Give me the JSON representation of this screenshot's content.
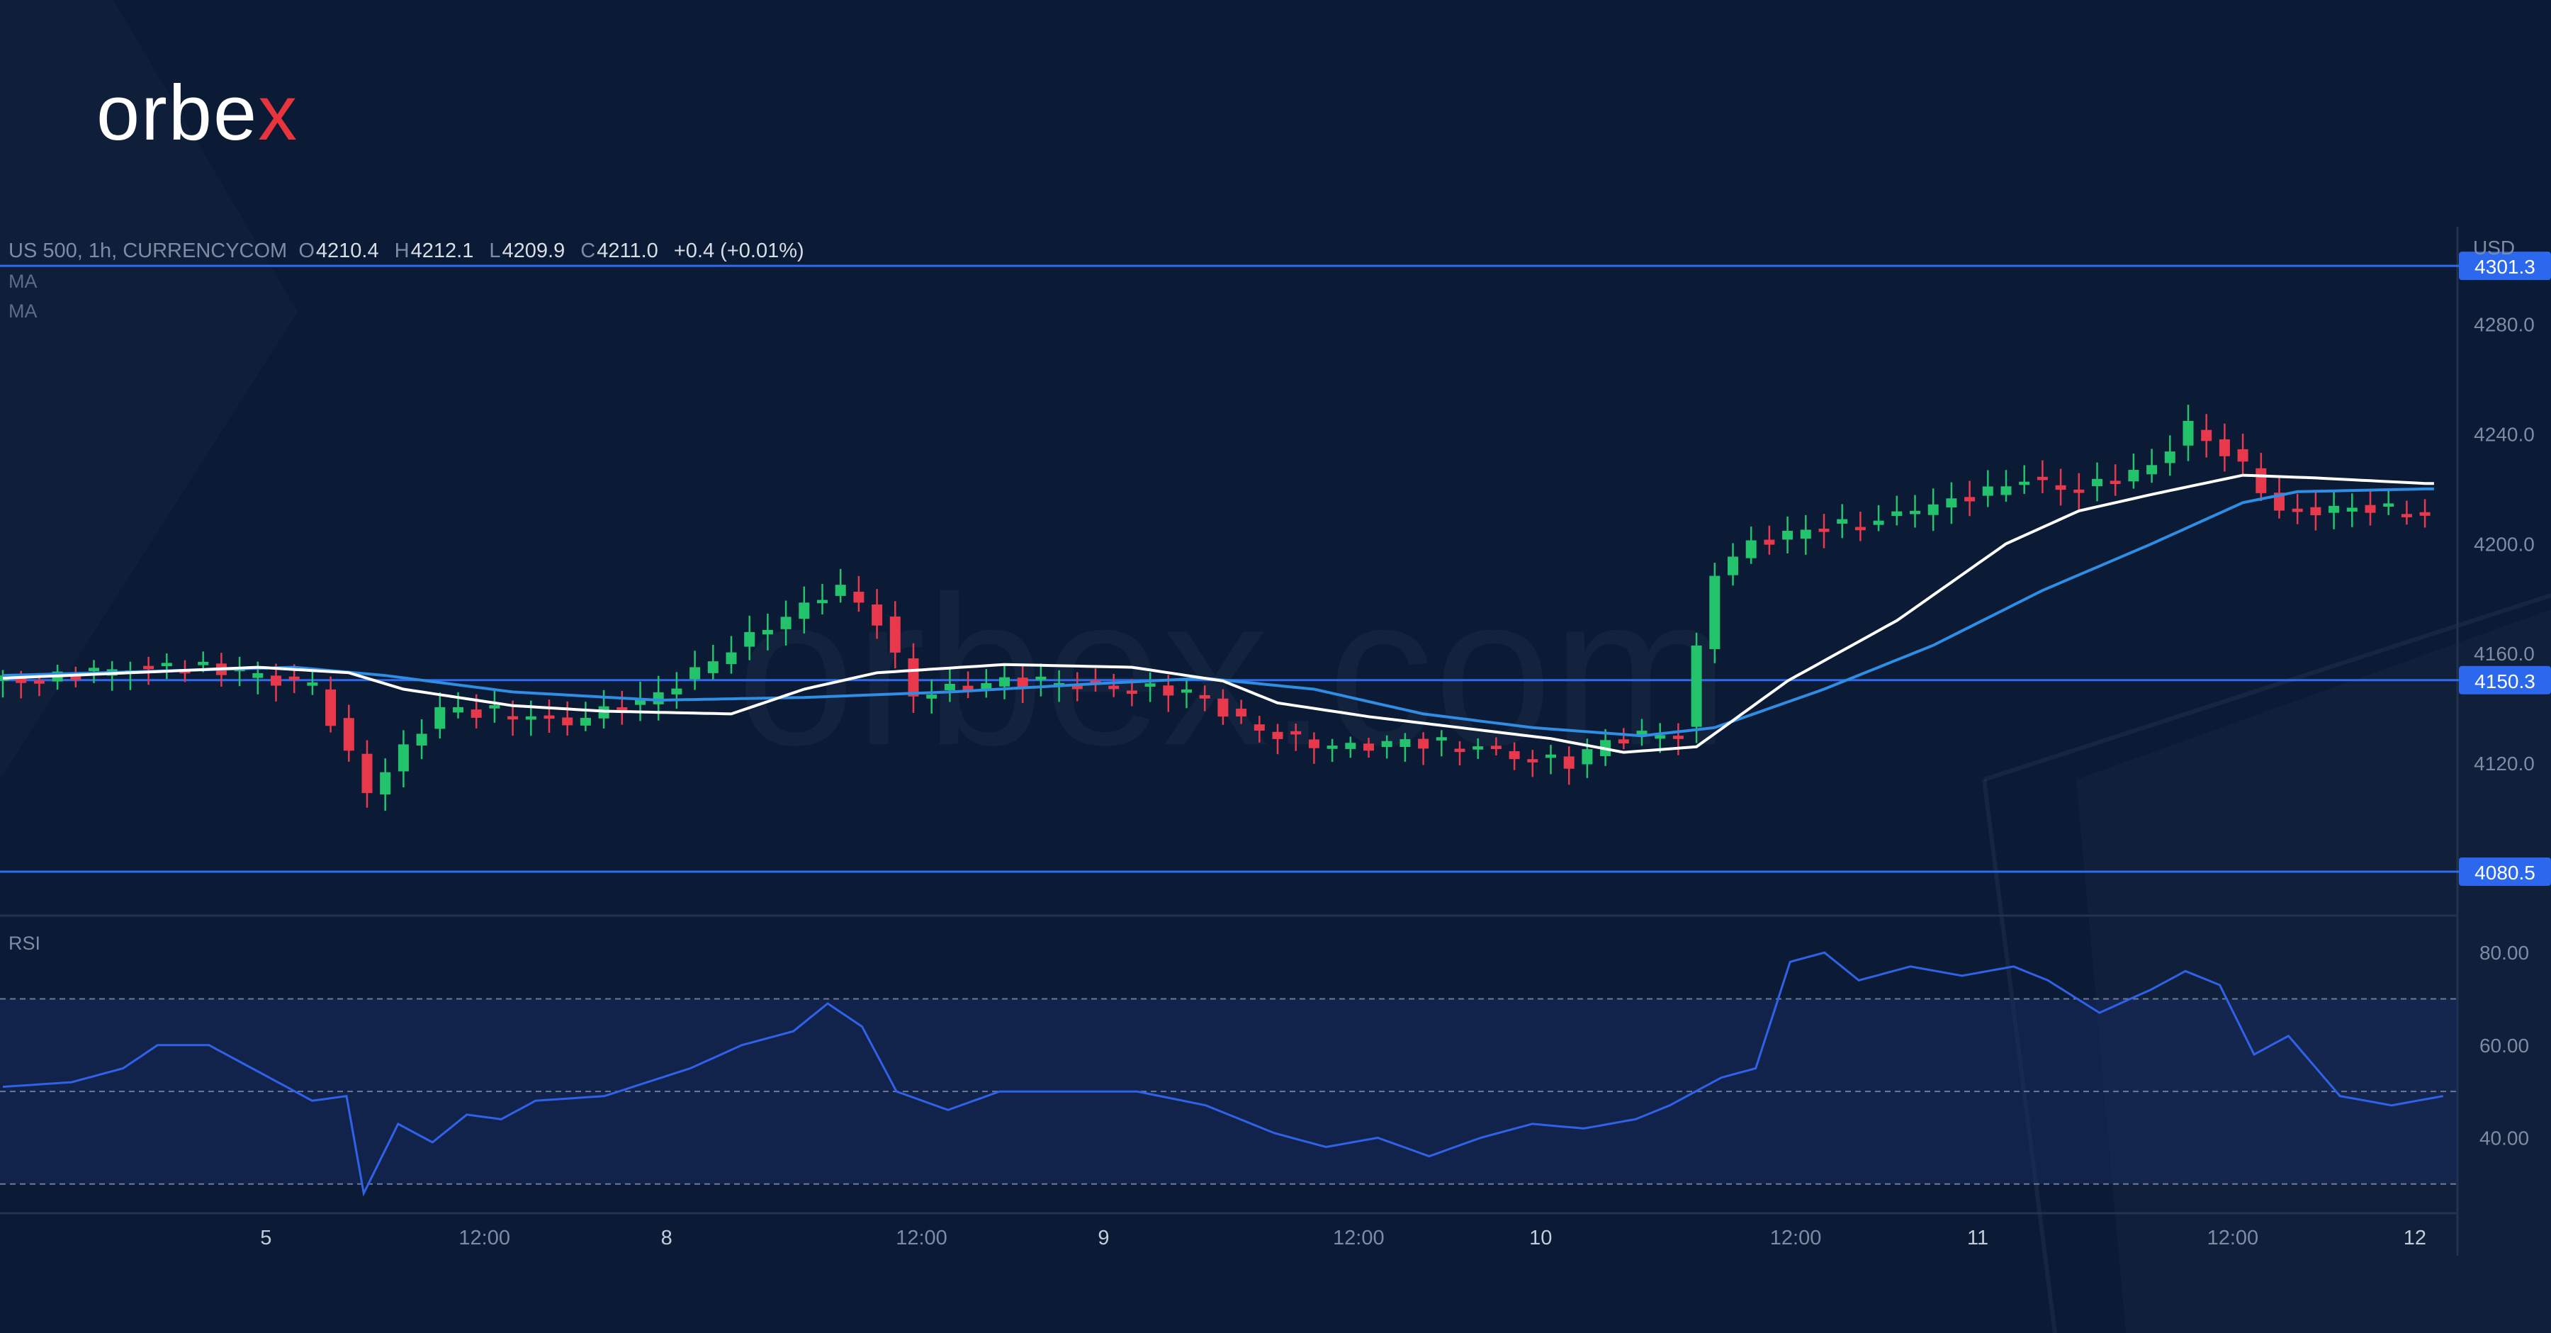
{
  "brand": {
    "name_main": "orbe",
    "name_accent": "x",
    "watermark": "orbex.com"
  },
  "legend": {
    "symbol": "US 500, 1h, CURRENCYCOM",
    "o_label": "O",
    "open": "4210.4",
    "h_label": "H",
    "high": "4212.1",
    "l_label": "L",
    "low": "4209.9",
    "c_label": "C",
    "close": "4211.0",
    "change": "+0.4 (+0.01%)",
    "ma1": "MA",
    "ma2": "MA"
  },
  "axis": {
    "currency": "USD"
  },
  "rsi_label": "RSI",
  "colors": {
    "background": "#0b1b36",
    "bull": "#22c36a",
    "bear": "#e8384c",
    "level_line": "#2f6bf0",
    "ma_fast": "#ffffff",
    "ma_slow": "#2f8de4",
    "rsi_line": "#2f62e8"
  },
  "chart_data": {
    "type": "candlestick",
    "symbol": "US 500",
    "timeframe": "1h",
    "y_ticks": [
      4120,
      4160,
      4200,
      4240,
      4280
    ],
    "y_tick_labels": [
      "4120.0",
      "4160.0",
      "4200.0",
      "4240.0",
      "4280.0"
    ],
    "ylim": [
      4065,
      4314
    ],
    "x_ticks": [
      {
        "label": "5",
        "bar": 9
      },
      {
        "label": "12:00",
        "bar": 21
      },
      {
        "label": "8",
        "bar": 31
      },
      {
        "label": "12:00",
        "bar": 45
      },
      {
        "label": "9",
        "bar": 55
      },
      {
        "label": "12:00",
        "bar": 69
      },
      {
        "label": "10",
        "bar": 79
      },
      {
        "label": "12:00",
        "bar": 93
      },
      {
        "label": "11",
        "bar": 103
      },
      {
        "label": "12:00",
        "bar": 117
      },
      {
        "label": "12",
        "bar": 127
      }
    ],
    "bars": 134,
    "levels": [
      {
        "value": 4301.3,
        "label": "4301.3"
      },
      {
        "value": 4150.3,
        "label": "4150.3"
      },
      {
        "value": 4080.5,
        "label": "4080.5"
      }
    ],
    "ohlc_anchors": [
      [
        0,
        4150
      ],
      [
        10,
        4156
      ],
      [
        17,
        4148
      ],
      [
        20,
        4110
      ],
      [
        24,
        4140
      ],
      [
        31,
        4135
      ],
      [
        36,
        4145
      ],
      [
        42,
        4170
      ],
      [
        46,
        4184
      ],
      [
        48,
        4172
      ],
      [
        50,
        4145
      ],
      [
        55,
        4150
      ],
      [
        61,
        4148
      ],
      [
        65,
        4146
      ],
      [
        69,
        4132
      ],
      [
        73,
        4125
      ],
      [
        77,
        4128
      ],
      [
        81,
        4125
      ],
      [
        86,
        4120
      ],
      [
        88,
        4128
      ],
      [
        92,
        4132
      ],
      [
        94,
        4190
      ],
      [
        96,
        4200
      ],
      [
        99,
        4205
      ],
      [
        104,
        4210
      ],
      [
        111,
        4223
      ],
      [
        114,
        4220
      ],
      [
        118,
        4228
      ],
      [
        120,
        4243
      ],
      [
        123,
        4228
      ],
      [
        125,
        4212
      ],
      [
        130,
        4213
      ],
      [
        133,
        4211
      ]
    ],
    "ma_fast_anchors": [
      [
        0,
        4151
      ],
      [
        14,
        4155
      ],
      [
        19,
        4153
      ],
      [
        22,
        4147
      ],
      [
        28,
        4141
      ],
      [
        33,
        4139
      ],
      [
        40,
        4138
      ],
      [
        44,
        4147
      ],
      [
        48,
        4153
      ],
      [
        55,
        4156
      ],
      [
        62,
        4155
      ],
      [
        67,
        4150
      ],
      [
        70,
        4142
      ],
      [
        75,
        4137
      ],
      [
        80,
        4133
      ],
      [
        85,
        4129
      ],
      [
        89,
        4124
      ],
      [
        93,
        4126
      ],
      [
        98,
        4150
      ],
      [
        104,
        4172
      ],
      [
        110,
        4200
      ],
      [
        114,
        4212
      ],
      [
        118,
        4218
      ],
      [
        123,
        4225
      ],
      [
        127,
        4224
      ],
      [
        133,
        4222
      ]
    ],
    "ma_slow_anchors": [
      [
        0,
        4152
      ],
      [
        16,
        4155
      ],
      [
        21,
        4152
      ],
      [
        28,
        4146
      ],
      [
        36,
        4143
      ],
      [
        44,
        4144
      ],
      [
        52,
        4146
      ],
      [
        60,
        4149
      ],
      [
        66,
        4151
      ],
      [
        72,
        4147
      ],
      [
        78,
        4138
      ],
      [
        84,
        4133
      ],
      [
        90,
        4130
      ],
      [
        94,
        4133
      ],
      [
        100,
        4147
      ],
      [
        106,
        4163
      ],
      [
        112,
        4183
      ],
      [
        118,
        4200
      ],
      [
        123,
        4215
      ],
      [
        126,
        4219
      ],
      [
        133,
        4220
      ]
    ],
    "rsi": {
      "y_ticks": [
        40,
        60,
        80
      ],
      "y_tick_labels": [
        "40.00",
        "60.00",
        "80.00"
      ],
      "ylim": [
        24,
        86
      ],
      "band": [
        30,
        70
      ],
      "midline": 50,
      "anchors": [
        [
          0,
          51
        ],
        [
          4,
          52
        ],
        [
          7,
          55
        ],
        [
          9,
          60
        ],
        [
          12,
          60
        ],
        [
          15,
          54
        ],
        [
          18,
          48
        ],
        [
          20,
          49
        ],
        [
          21,
          28
        ],
        [
          23,
          43
        ],
        [
          25,
          39
        ],
        [
          27,
          45
        ],
        [
          29,
          44
        ],
        [
          31,
          48
        ],
        [
          35,
          49
        ],
        [
          40,
          55
        ],
        [
          43,
          60
        ],
        [
          46,
          63
        ],
        [
          48,
          69
        ],
        [
          50,
          64
        ],
        [
          52,
          50
        ],
        [
          55,
          46
        ],
        [
          58,
          50
        ],
        [
          62,
          50
        ],
        [
          66,
          50
        ],
        [
          70,
          47
        ],
        [
          74,
          41
        ],
        [
          77,
          38
        ],
        [
          80,
          40
        ],
        [
          83,
          36
        ],
        [
          86,
          40
        ],
        [
          89,
          43
        ],
        [
          92,
          42
        ],
        [
          95,
          44
        ],
        [
          97,
          47
        ],
        [
          100,
          53
        ],
        [
          102,
          55
        ],
        [
          104,
          78
        ],
        [
          106,
          80
        ],
        [
          108,
          74
        ],
        [
          111,
          77
        ],
        [
          114,
          75
        ],
        [
          117,
          77
        ],
        [
          119,
          74
        ],
        [
          122,
          67
        ],
        [
          125,
          72
        ],
        [
          127,
          76
        ],
        [
          129,
          73
        ],
        [
          131,
          58
        ],
        [
          133,
          62
        ],
        [
          136,
          49
        ],
        [
          139,
          47
        ],
        [
          142,
          49
        ]
      ]
    }
  }
}
